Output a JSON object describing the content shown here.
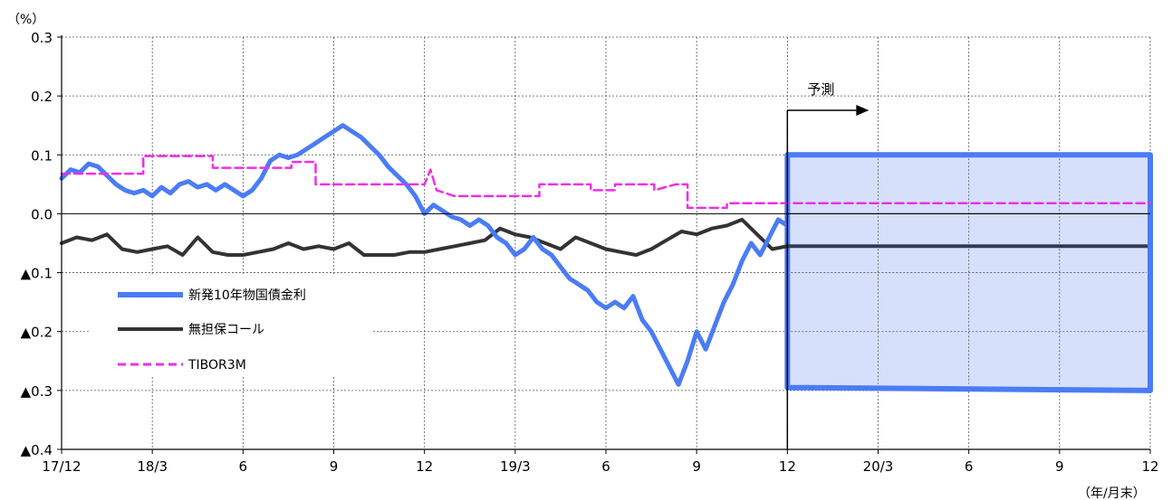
{
  "chart_data": {
    "type": "line",
    "y_unit_label": "（%）",
    "x_unit_label": "（年/月末）",
    "ylim": [
      -0.4,
      0.3
    ],
    "y_ticks": [
      {
        "value": 0.3,
        "label": "0.3"
      },
      {
        "value": 0.2,
        "label": "0.2"
      },
      {
        "value": 0.1,
        "label": "0.1"
      },
      {
        "value": 0.0,
        "label": "0.0"
      },
      {
        "value": -0.1,
        "label": "▲0.1"
      },
      {
        "value": -0.2,
        "label": "▲0.2"
      },
      {
        "value": -0.3,
        "label": "▲0.3"
      },
      {
        "value": -0.4,
        "label": "▲0.4"
      }
    ],
    "x_ticks": [
      {
        "month": 0,
        "label": "17/12"
      },
      {
        "month": 3,
        "label": "18/3"
      },
      {
        "month": 6,
        "label": "6"
      },
      {
        "month": 9,
        "label": "9"
      },
      {
        "month": 12,
        "label": "12"
      },
      {
        "month": 15,
        "label": "19/3"
      },
      {
        "month": 18,
        "label": "6"
      },
      {
        "month": 21,
        "label": "9"
      },
      {
        "month": 24,
        "label": "12"
      },
      {
        "month": 27,
        "label": "20/3"
      },
      {
        "month": 30,
        "label": "6"
      },
      {
        "month": 33,
        "label": "9"
      },
      {
        "month": 36,
        "label": "12"
      }
    ],
    "x_range_months": [
      0,
      36
    ],
    "grid": true,
    "legend_position": "left-bottom",
    "forecast": {
      "label": "予測",
      "start_month": 24,
      "band": {
        "start": [
          0.1,
          -0.295
        ],
        "end": [
          0.1,
          -0.3
        ]
      }
    },
    "series": [
      {
        "name": "新発10年物国債金利",
        "color": "#4a7cf5",
        "style": "solid-thick",
        "points": [
          [
            0,
            0.06
          ],
          [
            0.3,
            0.075
          ],
          [
            0.6,
            0.07
          ],
          [
            0.9,
            0.085
          ],
          [
            1.2,
            0.08
          ],
          [
            1.5,
            0.065
          ],
          [
            1.8,
            0.05
          ],
          [
            2.1,
            0.04
          ],
          [
            2.4,
            0.035
          ],
          [
            2.7,
            0.04
          ],
          [
            3.0,
            0.03
          ],
          [
            3.3,
            0.045
          ],
          [
            3.6,
            0.035
          ],
          [
            3.9,
            0.05
          ],
          [
            4.2,
            0.055
          ],
          [
            4.5,
            0.045
          ],
          [
            4.8,
            0.05
          ],
          [
            5.1,
            0.04
          ],
          [
            5.4,
            0.05
          ],
          [
            5.7,
            0.04
          ],
          [
            6.0,
            0.03
          ],
          [
            6.3,
            0.04
          ],
          [
            6.6,
            0.06
          ],
          [
            6.9,
            0.09
          ],
          [
            7.2,
            0.1
          ],
          [
            7.5,
            0.095
          ],
          [
            7.8,
            0.1
          ],
          [
            8.1,
            0.11
          ],
          [
            8.4,
            0.12
          ],
          [
            8.7,
            0.13
          ],
          [
            9.0,
            0.14
          ],
          [
            9.3,
            0.15
          ],
          [
            9.6,
            0.14
          ],
          [
            9.9,
            0.13
          ],
          [
            10.2,
            0.115
          ],
          [
            10.5,
            0.1
          ],
          [
            10.8,
            0.08
          ],
          [
            11.1,
            0.065
          ],
          [
            11.4,
            0.05
          ],
          [
            11.7,
            0.03
          ],
          [
            12.0,
            0.0
          ],
          [
            12.3,
            0.015
          ],
          [
            12.6,
            0.005
          ],
          [
            12.9,
            -0.005
          ],
          [
            13.2,
            -0.01
          ],
          [
            13.5,
            -0.02
          ],
          [
            13.8,
            -0.01
          ],
          [
            14.1,
            -0.02
          ],
          [
            14.4,
            -0.04
          ],
          [
            14.7,
            -0.05
          ],
          [
            15.0,
            -0.07
          ],
          [
            15.3,
            -0.06
          ],
          [
            15.6,
            -0.04
          ],
          [
            15.9,
            -0.06
          ],
          [
            16.2,
            -0.07
          ],
          [
            16.5,
            -0.09
          ],
          [
            16.8,
            -0.11
          ],
          [
            17.1,
            -0.12
          ],
          [
            17.4,
            -0.13
          ],
          [
            17.7,
            -0.15
          ],
          [
            18.0,
            -0.16
          ],
          [
            18.3,
            -0.15
          ],
          [
            18.6,
            -0.16
          ],
          [
            18.9,
            -0.14
          ],
          [
            19.2,
            -0.18
          ],
          [
            19.5,
            -0.2
          ],
          [
            19.8,
            -0.23
          ],
          [
            20.1,
            -0.26
          ],
          [
            20.4,
            -0.29
          ],
          [
            20.7,
            -0.25
          ],
          [
            21.0,
            -0.2
          ],
          [
            21.3,
            -0.23
          ],
          [
            21.6,
            -0.19
          ],
          [
            21.9,
            -0.15
          ],
          [
            22.2,
            -0.12
          ],
          [
            22.5,
            -0.08
          ],
          [
            22.8,
            -0.05
          ],
          [
            23.1,
            -0.07
          ],
          [
            23.4,
            -0.04
          ],
          [
            23.7,
            -0.01
          ],
          [
            24.0,
            -0.02
          ]
        ]
      },
      {
        "name": "無担保コール",
        "color": "#333333",
        "style": "solid-medium",
        "points": [
          [
            0,
            -0.05
          ],
          [
            0.5,
            -0.04
          ],
          [
            1.0,
            -0.045
          ],
          [
            1.5,
            -0.035
          ],
          [
            2.0,
            -0.06
          ],
          [
            2.5,
            -0.065
          ],
          [
            3.0,
            -0.06
          ],
          [
            3.5,
            -0.055
          ],
          [
            4.0,
            -0.07
          ],
          [
            4.5,
            -0.04
          ],
          [
            5.0,
            -0.065
          ],
          [
            5.5,
            -0.07
          ],
          [
            6.0,
            -0.07
          ],
          [
            6.5,
            -0.065
          ],
          [
            7.0,
            -0.06
          ],
          [
            7.5,
            -0.05
          ],
          [
            8.0,
            -0.06
          ],
          [
            8.5,
            -0.055
          ],
          [
            9.0,
            -0.06
          ],
          [
            9.5,
            -0.05
          ],
          [
            10.0,
            -0.07
          ],
          [
            10.5,
            -0.07
          ],
          [
            11.0,
            -0.07
          ],
          [
            11.5,
            -0.065
          ],
          [
            12.0,
            -0.065
          ],
          [
            12.5,
            -0.06
          ],
          [
            13.0,
            -0.055
          ],
          [
            13.5,
            -0.05
          ],
          [
            14.0,
            -0.045
          ],
          [
            14.5,
            -0.025
          ],
          [
            15.0,
            -0.035
          ],
          [
            15.5,
            -0.04
          ],
          [
            16.0,
            -0.05
          ],
          [
            16.5,
            -0.06
          ],
          [
            17.0,
            -0.04
          ],
          [
            17.5,
            -0.05
          ],
          [
            18.0,
            -0.06
          ],
          [
            18.5,
            -0.065
          ],
          [
            19.0,
            -0.07
          ],
          [
            19.5,
            -0.06
          ],
          [
            20.0,
            -0.045
          ],
          [
            20.5,
            -0.03
          ],
          [
            21.0,
            -0.035
          ],
          [
            21.5,
            -0.025
          ],
          [
            22.0,
            -0.02
          ],
          [
            22.5,
            -0.01
          ],
          [
            23.0,
            -0.035
          ],
          [
            23.5,
            -0.06
          ],
          [
            24.0,
            -0.055
          ]
        ],
        "forecast_value": -0.055
      },
      {
        "name": "TIBOR3M",
        "color": "#ee2fe6",
        "style": "dashed",
        "points": [
          [
            0,
            0.068
          ],
          [
            2.7,
            0.068
          ],
          [
            2.7,
            0.098
          ],
          [
            5.0,
            0.098
          ],
          [
            5.0,
            0.078
          ],
          [
            7.6,
            0.078
          ],
          [
            7.6,
            0.088
          ],
          [
            8.4,
            0.088
          ],
          [
            8.4,
            0.05
          ],
          [
            12.0,
            0.05
          ],
          [
            12.2,
            0.075
          ],
          [
            12.4,
            0.04
          ],
          [
            13.0,
            0.03
          ],
          [
            15.8,
            0.03
          ],
          [
            15.8,
            0.05
          ],
          [
            17.5,
            0.05
          ],
          [
            17.5,
            0.04
          ],
          [
            18.3,
            0.04
          ],
          [
            18.3,
            0.05
          ],
          [
            19.6,
            0.05
          ],
          [
            19.6,
            0.04
          ],
          [
            20.3,
            0.05
          ],
          [
            20.7,
            0.05
          ],
          [
            20.7,
            0.01
          ],
          [
            22.0,
            0.01
          ],
          [
            22.0,
            0.018
          ],
          [
            24.0,
            0.018
          ],
          [
            36.0,
            0.018
          ]
        ]
      }
    ]
  }
}
